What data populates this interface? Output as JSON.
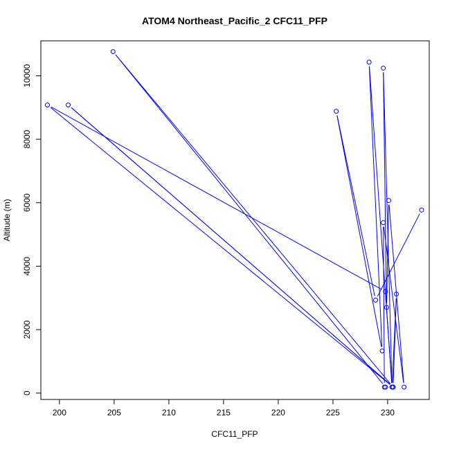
{
  "chart_data": {
    "type": "line",
    "title": "ATOM4 Northeast_Pacific_2 CFC11_PFP",
    "xlabel": "CFC11_PFP",
    "ylabel": "Altitude (m)",
    "xlim": [
      198.3,
      233.8
    ],
    "ylim": [
      -200,
      11100
    ],
    "xticks": [
      200,
      205,
      210,
      215,
      220,
      225,
      230
    ],
    "yticks": [
      0,
      2000,
      4000,
      6000,
      8000,
      10000
    ],
    "grid": false,
    "color": "#0000ff",
    "series": [
      {
        "marker": "open-circle",
        "points": [
          [
            233.1,
            5770
          ],
          [
            228.9,
            2930
          ],
          [
            225.3,
            8880
          ],
          [
            229.5,
            1330
          ],
          [
            228.3,
            10430
          ],
          [
            230.4,
            190
          ],
          [
            229.6,
            10240
          ],
          [
            229.9,
            2700
          ],
          [
            230.1,
            6070
          ],
          [
            231.5,
            190
          ],
          [
            229.6,
            5370
          ],
          [
            229.7,
            190
          ],
          [
            230.5,
            190
          ],
          [
            230.8,
            3120
          ],
          [
            230.4,
            190
          ],
          [
            229.8,
            3200
          ],
          [
            198.9,
            9080
          ],
          [
            230.5,
            190
          ],
          [
            200.8,
            9080
          ],
          [
            230.5,
            190
          ],
          [
            204.9,
            10760
          ],
          [
            229.8,
            190
          ]
        ]
      }
    ]
  }
}
